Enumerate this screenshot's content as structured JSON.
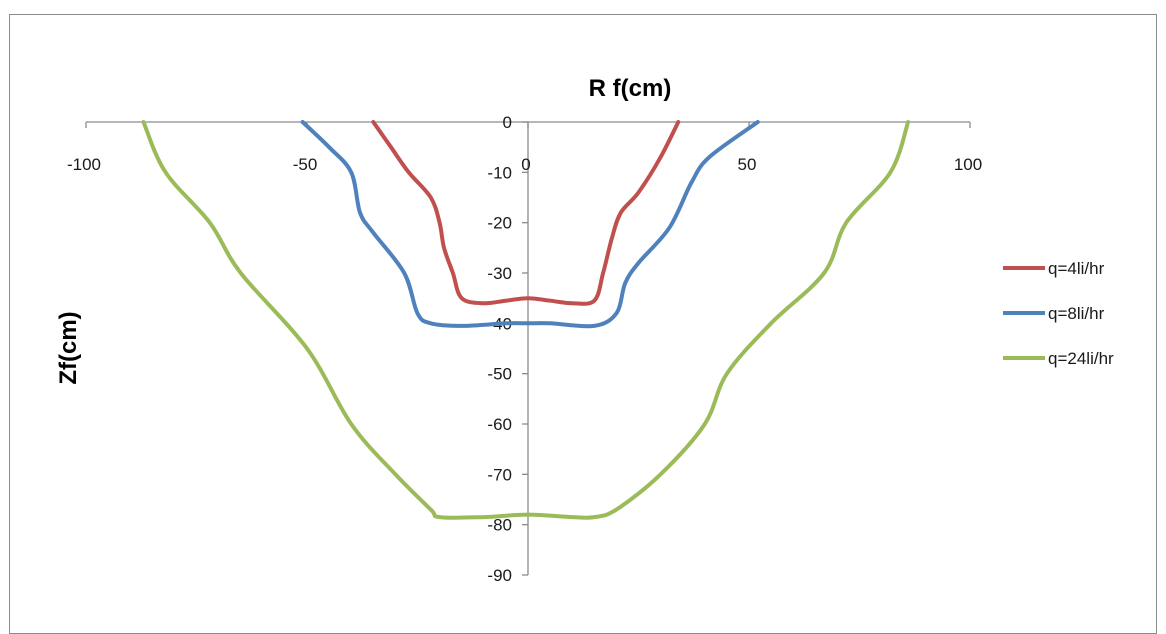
{
  "chart_data": {
    "type": "line",
    "xlabel": "R f(cm)",
    "ylabel": "Zf(cm)",
    "xlim": [
      -100,
      100
    ],
    "ylim": [
      -90,
      0
    ],
    "x_ticks": [
      -100,
      -50,
      0,
      50,
      100
    ],
    "y_ticks": [
      0,
      -10,
      -20,
      -30,
      -40,
      -50,
      -60,
      -70,
      -80,
      -90
    ],
    "grid": false,
    "legend_position": "right",
    "series": [
      {
        "name": "q=4li/hr",
        "color": "#c0504d",
        "x": [
          -35,
          -31,
          -27,
          -22,
          -20,
          -19,
          -17,
          -15,
          -10,
          -5,
          0,
          5,
          10,
          15,
          17,
          19,
          21,
          25,
          30,
          34
        ],
        "y": [
          0,
          -5,
          -10,
          -15,
          -20,
          -25,
          -30,
          -35,
          -36,
          -35.5,
          -35,
          -35.5,
          -36,
          -35.5,
          -30,
          -23,
          -18,
          -14,
          -7,
          0
        ]
      },
      {
        "name": "q=8li/hr",
        "color": "#4f81bd",
        "x": [
          -51,
          -45,
          -40,
          -38,
          -35,
          -28,
          -25,
          -22,
          -15,
          -5,
          0,
          5,
          15,
          20,
          22,
          25,
          32,
          37,
          41,
          52
        ],
        "y": [
          0,
          -5,
          -10,
          -18,
          -22,
          -30,
          -38,
          -40,
          -40.5,
          -40,
          -40,
          -40,
          -40.5,
          -38,
          -32,
          -28,
          -21,
          -12,
          -7,
          0
        ]
      },
      {
        "name": "q=24li/hr",
        "color": "#9bbb59",
        "x": [
          -87,
          -82,
          -72,
          -65,
          -50,
          -40,
          -30,
          -22,
          -20,
          -10,
          0,
          10,
          15,
          20,
          30,
          40,
          45,
          55,
          67,
          72,
          82,
          86
        ],
        "y": [
          0,
          -10,
          -20,
          -30,
          -45,
          -60,
          -70,
          -77,
          -78.5,
          -78.5,
          -78,
          -78.5,
          -78.5,
          -77,
          -70,
          -60,
          -50,
          -40,
          -30,
          -20,
          -10,
          0
        ]
      }
    ]
  }
}
